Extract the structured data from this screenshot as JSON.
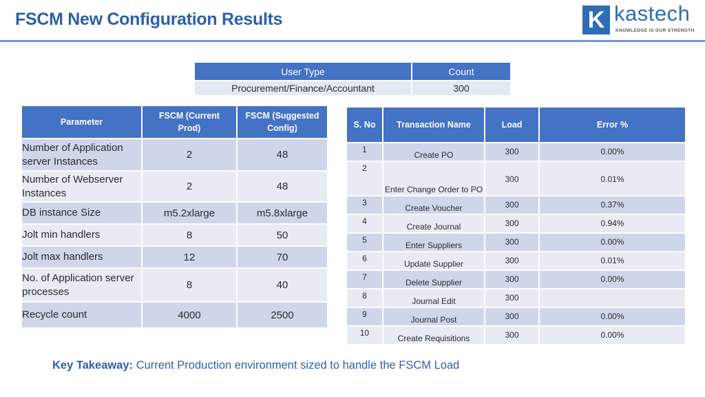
{
  "header": {
    "title": "FSCM New Configuration Results",
    "logo_letter": "K",
    "logo_word": "kastech",
    "logo_tagline": "KNOWLEDGE IS OUR STRENGTH"
  },
  "user_type_table": {
    "headers": [
      "User Type",
      "Count"
    ],
    "row": [
      "Procurement/Finance/Accountant",
      "300"
    ]
  },
  "parameter_table": {
    "headers": [
      "Parameter",
      "FSCM (Current Prod)",
      "FSCM (Suggested Config)"
    ],
    "rows": [
      [
        "Number of Application server Instances",
        "2",
        "48"
      ],
      [
        "Number of Webserver Instances",
        "2",
        "48"
      ],
      [
        "DB instance Size",
        "m5.2xlarge",
        "m5.8xlarge"
      ],
      [
        "Jolt min handlers",
        "8",
        "50"
      ],
      [
        "Jolt max handlers",
        "12",
        "70"
      ],
      [
        "No. of Application server processes",
        "8",
        "40"
      ],
      [
        "Recycle count",
        "4000",
        "2500"
      ]
    ]
  },
  "transaction_table": {
    "headers": [
      "S. No",
      "Transaction Name",
      "Load",
      "Error %"
    ],
    "rows": [
      [
        "1",
        "Create PO",
        "300",
        "0.00%"
      ],
      [
        "2",
        "Enter Change Order to PO",
        "300",
        "0.01%"
      ],
      [
        "3",
        "Create Voucher",
        "300",
        "0.37%"
      ],
      [
        "4",
        "Create Journal",
        "300",
        "0.94%"
      ],
      [
        "5",
        "Enter Suppliers",
        "300",
        "0.00%"
      ],
      [
        "6",
        "Update Supplier",
        "300",
        "0.01%"
      ],
      [
        "7",
        "Delete Supplier",
        "300",
        "0.00%"
      ],
      [
        "8",
        "Journal Edit",
        "300",
        ""
      ],
      [
        "9",
        "Journal Post",
        "300",
        "0.00%"
      ],
      [
        "10",
        "Create Requisitions",
        "300",
        "0.00%"
      ]
    ]
  },
  "key_takeaway": {
    "label": "Key Takeaway:",
    "text": "Current Production environment sized to handle the FSCM Load"
  }
}
